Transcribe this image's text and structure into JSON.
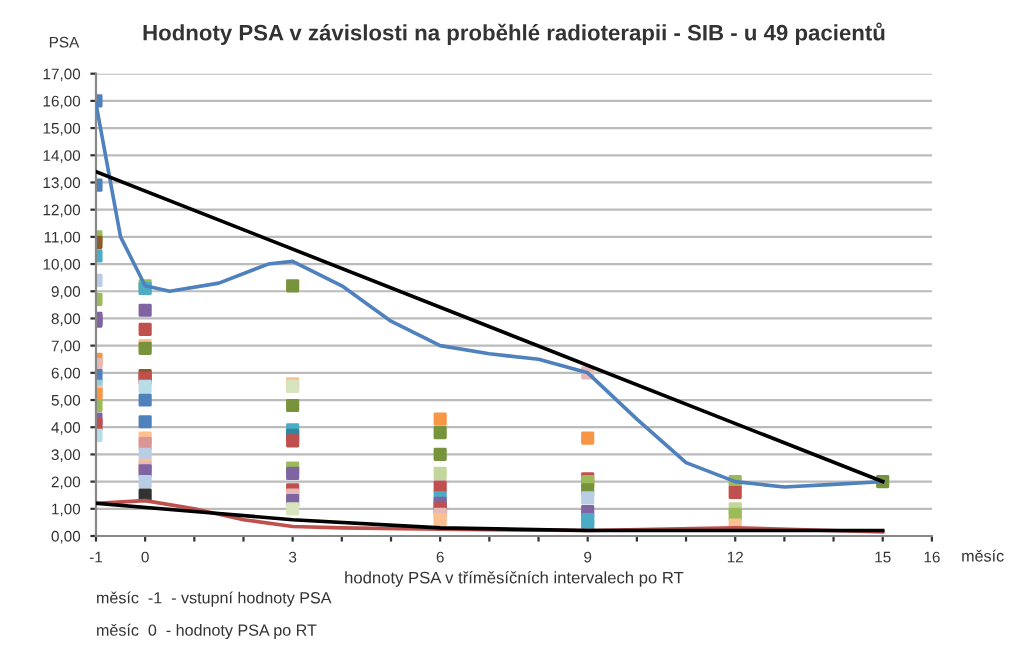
{
  "chart_data": {
    "type": "scatter",
    "title": "Hodnoty PSA v závislosti na proběhlé radioterapii - SIB - u 49 pacientů",
    "xlabel": "hodnoty PSA v tříměsíčních intervalech po RT",
    "ylabel": "PSA",
    "annotations": [
      "měsíc",
      "měsíc  -1  - vstupní hodnoty PSA",
      "měsíc  0  - hodnoty PSA po RT"
    ],
    "xlim": [
      -1,
      16
    ],
    "xticks": [
      -1,
      0,
      {
        "value": 1,
        "label": null
      },
      {
        "value": 2,
        "label": null
      },
      3,
      {
        "value": 4,
        "label": null
      },
      {
        "value": 5,
        "label": null
      },
      6,
      {
        "value": 7,
        "label": null
      },
      {
        "value": 8,
        "label": null
      },
      9,
      {
        "value": 10,
        "label": null
      },
      {
        "value": 11,
        "label": null
      },
      12,
      {
        "value": 13,
        "label": null
      },
      {
        "value": 14,
        "label": null
      },
      15,
      16
    ],
    "ylim": [
      0,
      17
    ],
    "yticks": [
      {
        "value": 0,
        "label": "0,00"
      },
      {
        "value": 1,
        "label": "1,00"
      },
      {
        "value": 2,
        "label": "2,00"
      },
      {
        "value": 3,
        "label": "3,00"
      },
      {
        "value": 4,
        "label": "4,00"
      },
      {
        "value": 5,
        "label": "5,00"
      },
      {
        "value": 6,
        "label": "6,00"
      },
      {
        "value": 7,
        "label": "7,00"
      },
      {
        "value": 8,
        "label": "8,00"
      },
      {
        "value": 9,
        "label": "9,00"
      },
      {
        "value": 10,
        "label": "10,00"
      },
      {
        "value": 11,
        "label": "11,00"
      },
      {
        "value": 12,
        "label": "12,00"
      },
      {
        "value": 13,
        "label": "13,00"
      },
      {
        "value": 14,
        "label": "14,00"
      },
      {
        "value": 15,
        "label": "15,00"
      },
      {
        "value": 16,
        "label": "16,00"
      },
      {
        "value": 17,
        "label": "17,00"
      }
    ],
    "grid": "y",
    "legend": false,
    "series": [
      {
        "marker": "square",
        "x": [
          -1,
          -1,
          -1,
          -1,
          -1,
          -1,
          -1,
          -1,
          -1,
          -1,
          -1,
          -1,
          -1,
          -1,
          -1,
          -1,
          -1,
          -1,
          -1,
          0,
          0,
          0,
          0,
          0,
          0,
          0,
          0,
          0,
          0,
          0,
          0,
          0,
          0,
          0,
          0,
          0,
          0,
          0,
          3,
          3,
          3,
          3,
          3,
          3,
          3,
          3,
          3,
          3,
          3,
          3,
          3,
          6,
          6,
          6,
          6,
          6,
          6,
          6,
          6,
          6,
          6,
          9,
          9,
          9,
          9,
          9,
          9,
          9,
          9,
          9,
          12,
          12,
          12,
          12,
          12,
          15
        ],
        "values": [
          16.0,
          12.9,
          11.0,
          10.8,
          10.3,
          9.4,
          8.7,
          8.0,
          7.9,
          6.5,
          6.3,
          5.9,
          5.5,
          5.3,
          5.2,
          4.8,
          4.3,
          4.1,
          3.7,
          9.2,
          9.1,
          8.3,
          7.6,
          7.0,
          6.9,
          5.9,
          5.8,
          5.5,
          5.0,
          4.2,
          3.6,
          3.4,
          3.0,
          2.6,
          2.5,
          2.4,
          2.0,
          1.5,
          9.2,
          5.6,
          5.5,
          4.8,
          3.9,
          3.7,
          3.5,
          2.5,
          2.3,
          1.7,
          1.5,
          1.3,
          1.0,
          4.3,
          3.8,
          3.0,
          2.3,
          1.8,
          1.4,
          1.2,
          1.0,
          0.8,
          0.6,
          6.0,
          3.6,
          2.1,
          2.0,
          1.7,
          1.4,
          0.9,
          0.6,
          0.4,
          2.0,
          1.6,
          1.0,
          0.8,
          0.4,
          2.0
        ],
        "colors": [
          "#4f81bd",
          "#4f81bd",
          "#9bbb59",
          "#8b5a2b",
          "#4bacc6",
          "#b9cde5",
          "#9bbb59",
          "#8064a2",
          "#8064a2",
          "#f79646",
          "#e6b9b8",
          "#4f81bd",
          "#93cddd",
          "#fac090",
          "#f79646",
          "#9bbb59",
          "#8064a2",
          "#c0504d",
          "#b7dee8",
          "#9bbb59",
          "#4bacc6",
          "#8064a2",
          "#c0504d",
          "#fac090",
          "#77933c",
          "#8b5a2b",
          "#c0504d",
          "#b7dee8",
          "#4f81bd",
          "#4f81bd",
          "#fac090",
          "#d99694",
          "#b9cde5",
          "#fac090",
          "#e6b9b8",
          "#8064a2",
          "#b9cde5",
          "#333333",
          "#77933c",
          "#fac090",
          "#d7e4bd",
          "#77933c",
          "#4bacc6",
          "#31859c",
          "#c0504d",
          "#9bbb59",
          "#8064a2",
          "#c0504d",
          "#e6b9b8",
          "#8064a2",
          "#d7e4bd",
          "#f79646",
          "#77933c",
          "#77933c",
          "#c3d69b",
          "#c0504d",
          "#4bacc6",
          "#8064a2",
          "#c0504d",
          "#e6b9b8",
          "#fac090",
          "#e6b9b8",
          "#f79646",
          "#c0504d",
          "#9bbb59",
          "#77933c",
          "#b9cde5",
          "#8064a2",
          "#4bacc6",
          "#4bacc6",
          "#9bbb59",
          "#c0504d",
          "#c3d69b",
          "#9bbb59",
          "#fac090",
          "#77933c"
        ]
      },
      {
        "type": "line",
        "color": "#4f81bd",
        "x": [
          -1,
          -0.5,
          0,
          0.5,
          1.5,
          2.5,
          3,
          4,
          5,
          6,
          7,
          8,
          9,
          10,
          11,
          12,
          13,
          14,
          15
        ],
        "values": [
          15.9,
          11.0,
          9.2,
          9.0,
          9.3,
          10.0,
          10.1,
          9.2,
          7.9,
          7.0,
          6.7,
          6.5,
          6.0,
          4.3,
          2.7,
          2.0,
          1.8,
          1.9,
          2.0
        ]
      },
      {
        "type": "line",
        "color": "#000000",
        "x": [
          -1,
          15
        ],
        "values": [
          13.4,
          2.0
        ]
      },
      {
        "type": "line",
        "color": "#c0504d",
        "x": [
          -1,
          0,
          1,
          2,
          3,
          4,
          6,
          9,
          12,
          15
        ],
        "values": [
          1.2,
          1.3,
          1.0,
          0.6,
          0.35,
          0.3,
          0.25,
          0.2,
          0.3,
          0.15
        ]
      },
      {
        "type": "line",
        "color": "#000000",
        "x": [
          -1,
          1,
          3,
          6,
          9,
          12,
          15
        ],
        "values": [
          1.2,
          0.9,
          0.6,
          0.3,
          0.2,
          0.2,
          0.2
        ]
      }
    ]
  }
}
